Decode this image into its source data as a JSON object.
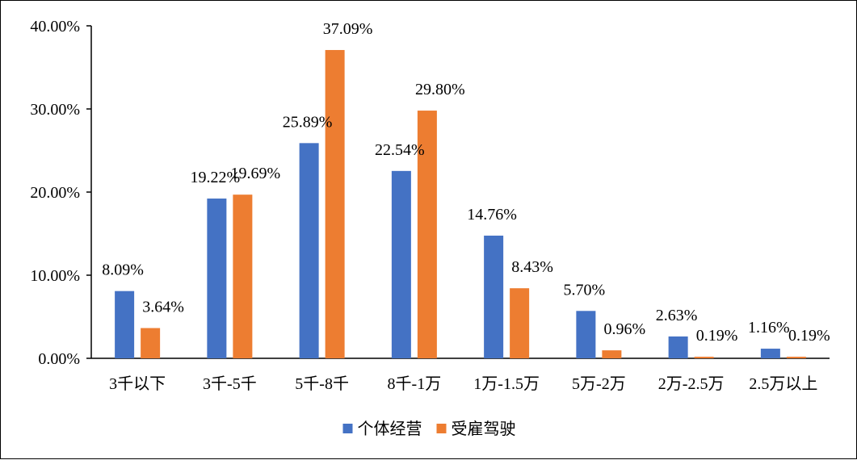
{
  "chart_data": {
    "type": "bar",
    "title": "",
    "xlabel": "",
    "ylabel": "",
    "categories": [
      "3千以下",
      "3千-5千",
      "5千-8千",
      "8千-1万",
      "1万-1.5万",
      "5万-2万",
      "2万-2.5万",
      "2.5万以上"
    ],
    "series": [
      {
        "name": "个体经营",
        "color": "#4472C4",
        "values": [
          8.09,
          19.22,
          25.89,
          22.54,
          14.76,
          5.7,
          2.63,
          1.16
        ],
        "labels": [
          "8.09%",
          "19.22%",
          "25.89%",
          "22.54%",
          "14.76%",
          "5.70%",
          "2.63%",
          "1.16%"
        ]
      },
      {
        "name": "受雇驾驶",
        "color": "#ED7D31",
        "values": [
          3.64,
          19.69,
          37.09,
          29.8,
          8.43,
          0.96,
          0.19,
          0.19
        ],
        "labels": [
          "3.64%",
          "19.69%",
          "37.09%",
          "29.80%",
          "8.43%",
          "0.96%",
          "0.19%",
          "0.19%"
        ]
      }
    ],
    "ylim": [
      0,
      40
    ],
    "y_ticks": [
      0,
      10,
      20,
      30,
      40
    ],
    "y_tick_labels": [
      "0.00%",
      "10.00%",
      "20.00%",
      "30.00%",
      "40.00%"
    ],
    "grid": false,
    "legend_position": "bottom"
  }
}
